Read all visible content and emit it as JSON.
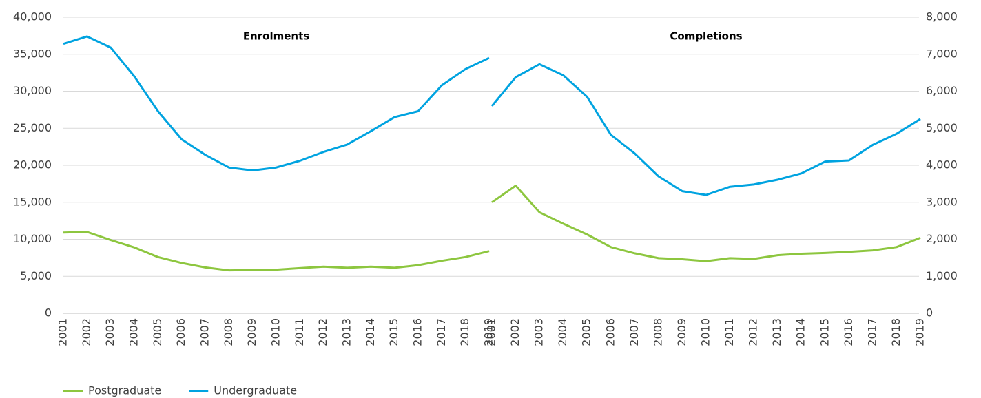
{
  "chart_data": [
    {
      "type": "line",
      "title": "Enrolments",
      "categories": [
        "2001",
        "2002",
        "2003",
        "2004",
        "2005",
        "2006",
        "2007",
        "2008",
        "2009",
        "2010",
        "2011",
        "2012",
        "2013",
        "2014",
        "2015",
        "2016",
        "2017",
        "2018",
        "2019"
      ],
      "ylim": [
        0,
        40000
      ],
      "yticks": [
        0,
        {
          "value": 5000,
          "label": "5,000"
        },
        {
          "value": 10000,
          "label": "10,000"
        },
        {
          "value": 15000,
          "label": "15,000"
        },
        {
          "value": 20000,
          "label": "20,000"
        },
        {
          "value": 25000,
          "label": "25,000"
        },
        {
          "value": 30000,
          "label": "30,000"
        },
        {
          "value": 35000,
          "label": "35,000"
        },
        {
          "value": 40000,
          "label": "40,000"
        }
      ],
      "grid": true,
      "legend": "bottom-left",
      "series": [
        {
          "name": "Postgraduate",
          "color": "#8dc63f",
          "values": [
            10900,
            11000,
            9900,
            8900,
            7600,
            6800,
            6200,
            5800,
            5850,
            5900,
            6100,
            6300,
            6150,
            6300,
            6150,
            6500,
            7100,
            7600,
            8400
          ]
        },
        {
          "name": "Undergraduate",
          "color": "#00a3e0",
          "values": [
            36400,
            37400,
            35900,
            32000,
            27300,
            23500,
            21400,
            19700,
            19300,
            19700,
            20600,
            21800,
            22800,
            24600,
            26500,
            27300,
            30800,
            33000,
            34500
          ]
        }
      ]
    },
    {
      "type": "line",
      "title": "Completions",
      "categories": [
        "2001",
        "2002",
        "2003",
        "2004",
        "2005",
        "2006",
        "2007",
        "2008",
        "2009",
        "2010",
        "2011",
        "2012",
        "2013",
        "2014",
        "2015",
        "2016",
        "2017",
        "2018",
        "2019"
      ],
      "y2lim": [
        0,
        8000
      ],
      "y2ticks": [
        0,
        {
          "value": 1000,
          "label": "1,000"
        },
        {
          "value": 2000,
          "label": "2,000"
        },
        {
          "value": 3000,
          "label": "3,000"
        },
        {
          "value": 4000,
          "label": "4,000"
        },
        {
          "value": 5000,
          "label": "5,000"
        },
        {
          "value": 6000,
          "label": "6,000"
        },
        {
          "value": 7000,
          "label": "7,000"
        },
        {
          "value": 8000,
          "label": "8,000"
        }
      ],
      "series": [
        {
          "color": "#8dc63f",
          "axis": "y2",
          "values": [
            3000,
            3450,
            2730,
            2420,
            2130,
            1790,
            1620,
            1490,
            1460,
            1410,
            1490,
            1470,
            1570,
            1610,
            1630,
            1660,
            1700,
            1790,
            2040
          ]
        },
        {
          "color": "#00a3e0",
          "axis": "y2",
          "values": [
            5600,
            6380,
            6730,
            6430,
            5850,
            4820,
            4320,
            3700,
            3300,
            3200,
            3420,
            3480,
            3610,
            3780,
            4100,
            4130,
            4550,
            4850,
            5250
          ]
        }
      ]
    }
  ]
}
